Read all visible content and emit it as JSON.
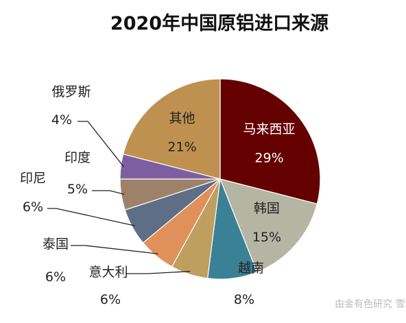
{
  "chart_data": {
    "type": "pie",
    "title": "2020年中国原铝进口来源",
    "slices": [
      {
        "label": "马来西亚",
        "value": 29,
        "value_label": "29%",
        "color": "#640000"
      },
      {
        "label": "韩国",
        "value": 15,
        "value_label": "15%",
        "color": "#b5b5a3"
      },
      {
        "label": "越南",
        "value": 8,
        "value_label": "8%",
        "color": "#3a8196"
      },
      {
        "label": "意大利",
        "value": 6,
        "value_label": "6%",
        "color": "#bf9f5f"
      },
      {
        "label": "泰国",
        "value": 6,
        "value_label": "6%",
        "color": "#e0915b"
      },
      {
        "label": "印尼",
        "value": 6,
        "value_label": "6%",
        "color": "#5f6e87"
      },
      {
        "label": "印度",
        "value": 5,
        "value_label": "5%",
        "color": "#9d8269"
      },
      {
        "label": "俄罗斯",
        "value": 4,
        "value_label": "4%",
        "color": "#7d5fa1"
      },
      {
        "label": "其他",
        "value": 21,
        "value_label": "21%",
        "color": "#bf9150"
      }
    ]
  },
  "watermark": {
    "text": "由金有色研究 雪球"
  }
}
